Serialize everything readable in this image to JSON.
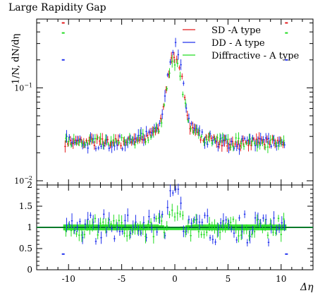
{
  "chart_data": {
    "type": "scatter",
    "title": "Large Rapidity Gap",
    "xlabel": "Δη",
    "ylabel": "1/N, dN/dη",
    "colors": {
      "sd": "#e41a1c",
      "dd": "#2233ee",
      "diff": "#22dd22",
      "ref_line": "#007a2a"
    },
    "main_panel": {
      "y_scale": "log",
      "ylim": [
        0.009,
        0.55
      ],
      "xlim": [
        -13,
        13
      ],
      "y_tick_labels": [
        "10^-2",
        "10^-1"
      ],
      "y_tick_values": [
        0.01,
        0.1
      ],
      "legend_position": "top-right",
      "series": [
        {
          "name": "SD -A type",
          "color_key": "sd"
        },
        {
          "name": "DD - A type",
          "color_key": "dd"
        },
        {
          "name": "Diffractive - A type",
          "color_key": "diff"
        }
      ],
      "edge_points": [
        {
          "series": "SD -A type",
          "points": [
            [
              -10.5,
              0.5
            ],
            [
              10.5,
              0.5
            ]
          ]
        },
        {
          "series": "Diffractive - A type",
          "points": [
            [
              -10.5,
              0.39
            ],
            [
              10.5,
              0.39
            ]
          ]
        },
        {
          "series": "DD - A type",
          "points": [
            [
              -10.5,
              0.2
            ],
            [
              10.5,
              0.2
            ]
          ]
        }
      ]
    },
    "ratio_panel": {
      "ylim": [
        0,
        2
      ],
      "y_tick_values": [
        0,
        0.5,
        1,
        1.5,
        2
      ],
      "y_tick_labels": [
        "0",
        "0.5",
        "1",
        "1.5",
        "2"
      ],
      "reference_line": 1,
      "edge_points": [
        {
          "series": "DD - A type",
          "points": [
            [
              -10.5,
              0.37
            ],
            [
              10.5,
              0.37
            ]
          ]
        }
      ]
    },
    "x_tick_values": [
      -10,
      -5,
      0,
      5,
      10
    ],
    "x_tick_labels": [
      "-10",
      "-5",
      "0",
      "5",
      "10"
    ]
  }
}
